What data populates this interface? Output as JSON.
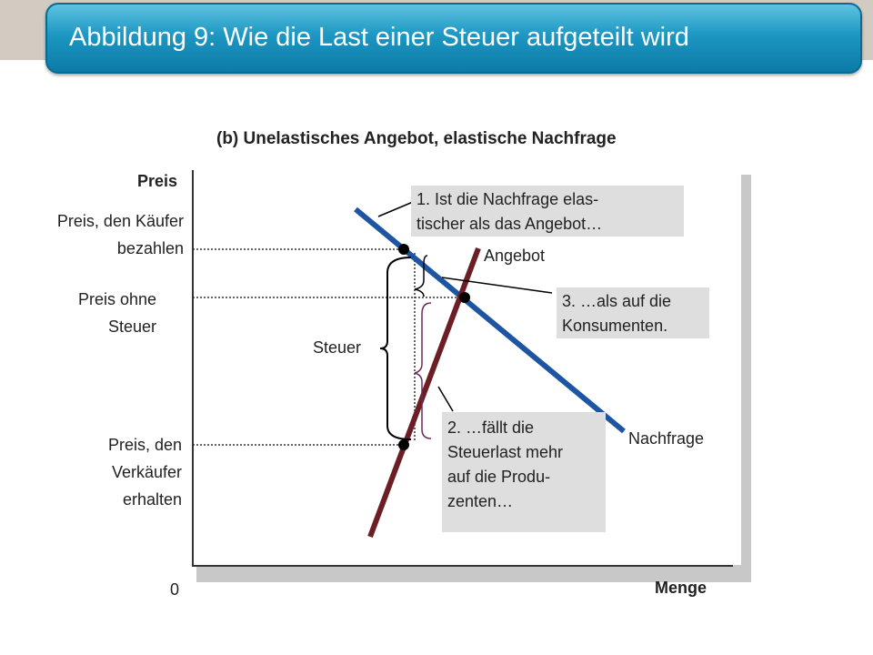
{
  "title": "Abbildung 9: Wie die Last einer Steuer aufgeteilt wird",
  "chart_data": {
    "type": "line",
    "title": "(b) Unelastisches Angebot, elastische Nachfrage",
    "ylabel": "Preis",
    "xlabel": "Menge",
    "origin_label": "0",
    "series": [
      {
        "name": "Angebot",
        "color": "#6b1e24"
      },
      {
        "name": "Nachfrage",
        "color": "#1e55a3"
      }
    ],
    "price_levels": {
      "buyers": {
        "line1": "Preis, den Käufer",
        "line2": "bezahlen"
      },
      "no_tax": {
        "line1": "Preis ohne",
        "line2": "Steuer"
      },
      "sellers": {
        "line1": "Preis, den",
        "line2": "Verkäufer",
        "line3": "erhalten"
      }
    },
    "tax_label": "Steuer",
    "notes": {
      "n1": {
        "line1": "1.    Ist die Nachfrage elas-",
        "line2": "tischer als das Angebot…"
      },
      "n2": {
        "line1": "2. …fällt die",
        "line2": "Steuerlast mehr",
        "line3": "auf die Produ-",
        "line4": "zenten…"
      },
      "n3": {
        "line1": "3. …als auf die",
        "line2": "Konsumenten."
      }
    }
  }
}
